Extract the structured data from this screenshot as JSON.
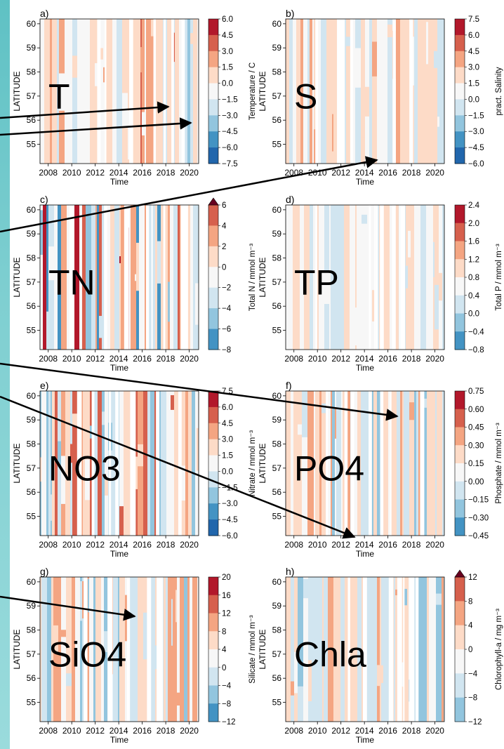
{
  "figure": {
    "shared_xlabel": "Time",
    "shared_ylabel": "LATITUDE",
    "x_ticks": [
      "2008",
      "2010",
      "2012",
      "2014",
      "2016",
      "2018",
      "2020"
    ],
    "y_ticks": [
      "55",
      "56",
      "57",
      "58",
      "59",
      "60"
    ]
  },
  "colors": {
    "diverging": [
      "#053061",
      "#2166ac",
      "#4393c3",
      "#92c5de",
      "#d1e5f0",
      "#f7f7f7",
      "#fddbc7",
      "#f4a582",
      "#d6604d",
      "#b2182b",
      "#67001f"
    ],
    "background_strip": "#6cc7c9",
    "arrow": "#000000"
  },
  "chart_data": [
    {
      "type": "heatmap",
      "panel": "a)",
      "overlay_label": "T",
      "colorbar_label": "Temperature / C",
      "colorbar_ticks": [
        "6.0",
        "4.5",
        "3.0",
        "1.5",
        "0.0",
        "−1.5",
        "−3.0",
        "−4.5",
        "−6.0",
        "−7.5"
      ],
      "colorbar_extend": "none",
      "x_range": [
        2007.3,
        2020.8
      ],
      "y_range": [
        54.2,
        60.2
      ],
      "xlabel": "Time",
      "ylabel": "LATITUDE"
    },
    {
      "type": "heatmap",
      "panel": "b)",
      "overlay_label": "S",
      "colorbar_label": "pract. Salinity",
      "colorbar_ticks": [
        "7.5",
        "6.0",
        "4.5",
        "3.0",
        "1.5",
        "0.0",
        "−1.5",
        "−3.0",
        "−4.5",
        "−6.0"
      ],
      "colorbar_extend": "none",
      "x_range": [
        2007.3,
        2020.8
      ],
      "y_range": [
        54.2,
        60.2
      ],
      "xlabel": "Time",
      "ylabel": "LATITUDE"
    },
    {
      "type": "heatmap",
      "panel": "c)",
      "overlay_label": "TN",
      "colorbar_label": "Total N / mmol m⁻³",
      "colorbar_ticks": [
        "6",
        "4",
        "2",
        "0",
        "−2",
        "−4",
        "−6",
        "−8"
      ],
      "colorbar_extend": "max",
      "x_range": [
        2007.3,
        2020.8
      ],
      "y_range": [
        54.2,
        60.2
      ],
      "xlabel": "Time",
      "ylabel": "LATITUDE"
    },
    {
      "type": "heatmap",
      "panel": "d)",
      "overlay_label": "TP",
      "colorbar_label": "Total P / mmol m⁻³",
      "colorbar_ticks": [
        "2.4",
        "2.0",
        "1.6",
        "1.2",
        "0.8",
        "0.4",
        "0.0",
        "−0.4",
        "−0.8"
      ],
      "colorbar_extend": "none",
      "x_range": [
        2007.3,
        2020.8
      ],
      "y_range": [
        54.2,
        60.2
      ],
      "xlabel": "Time",
      "ylabel": "LATITUDE"
    },
    {
      "type": "heatmap",
      "panel": "e)",
      "overlay_label": "NO3",
      "colorbar_label": "Nitrate / mmol m⁻³",
      "colorbar_ticks": [
        "7.5",
        "6.0",
        "4.5",
        "3.0",
        "1.5",
        "0.0",
        "−1.5",
        "−3.0",
        "−4.5",
        "−6.0"
      ],
      "colorbar_extend": "none",
      "x_range": [
        2007.3,
        2020.8
      ],
      "y_range": [
        54.2,
        60.2
      ],
      "xlabel": "Time",
      "ylabel": "LATITUDE"
    },
    {
      "type": "heatmap",
      "panel": "f)",
      "overlay_label": "PO4",
      "colorbar_label": "Phosphate / mmol m⁻³",
      "colorbar_ticks": [
        "0.75",
        "0.60",
        "0.45",
        "0.30",
        "0.15",
        "0.00",
        "−0.15",
        "−0.30",
        "−0.45"
      ],
      "colorbar_extend": "none",
      "x_range": [
        2007.3,
        2020.8
      ],
      "y_range": [
        54.2,
        60.2
      ],
      "xlabel": "Time",
      "ylabel": "LATITUDE"
    },
    {
      "type": "heatmap",
      "panel": "g)",
      "overlay_label": "SiO4",
      "colorbar_label": "Silicate / mmol m⁻³",
      "colorbar_ticks": [
        "20",
        "16",
        "12",
        "8",
        "4",
        "0",
        "−4",
        "−8",
        "−12"
      ],
      "colorbar_extend": "none",
      "x_range": [
        2007.3,
        2020.8
      ],
      "y_range": [
        54.2,
        60.2
      ],
      "xlabel": "Time",
      "ylabel": "LATITUDE"
    },
    {
      "type": "heatmap",
      "panel": "h)",
      "overlay_label": "Chla",
      "colorbar_label": "Chlorophyll-a / mg m⁻³",
      "colorbar_ticks": [
        "12",
        "8",
        "4",
        "0",
        "−4",
        "−8",
        "−12"
      ],
      "colorbar_extend": "max",
      "x_range": [
        2007.3,
        2020.8
      ],
      "y_range": [
        54.2,
        60.2
      ],
      "xlabel": "Time",
      "ylabel": "LATITUDE"
    }
  ]
}
